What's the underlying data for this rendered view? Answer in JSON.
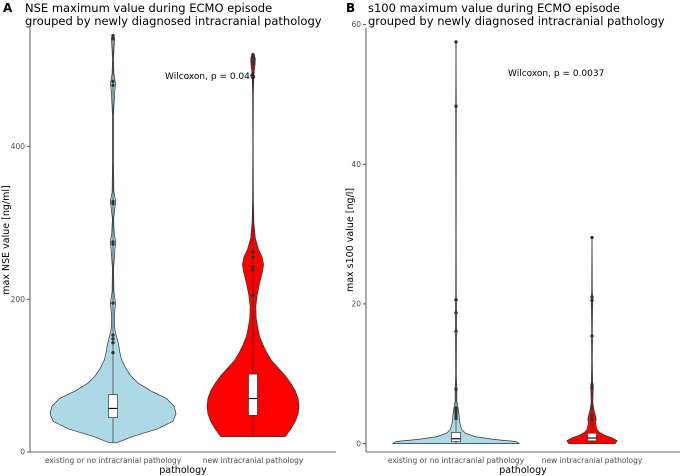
{
  "chart_data": [
    {
      "panel": "A",
      "type": "violin",
      "title_line1": "NSE maximum value during ECMO episode",
      "title_line2": "grouped by newly diagnosed intracranial pathology",
      "xlabel": "pathology",
      "ylabel": "max NSE value [ng/ml]",
      "ylim": [
        0,
        555
      ],
      "yticks": [
        "0",
        "200",
        "400"
      ],
      "annotation": "Wilcoxon, p = 0.046",
      "categories": [
        "existing or no intracranial pathology",
        "new intracranial pathology"
      ],
      "series": [
        {
          "fill": "#add8e6",
          "min": 12,
          "q1": 45,
          "median": 57,
          "q3": 75,
          "max": 545,
          "whisker_high": 130,
          "outliers": [
            545,
            541,
            485,
            480,
            328,
            325,
            275,
            272,
            195,
            153,
            148,
            143,
            130
          ],
          "density": [
            [
              12,
              0.06
            ],
            [
              20,
              0.3
            ],
            [
              30,
              0.7
            ],
            [
              40,
              0.95
            ],
            [
              50,
              1
            ],
            [
              60,
              0.97
            ],
            [
              70,
              0.85
            ],
            [
              80,
              0.6
            ],
            [
              90,
              0.4
            ],
            [
              100,
              0.28
            ],
            [
              110,
              0.2
            ],
            [
              120,
              0.14
            ],
            [
              130,
              0.11
            ],
            [
              140,
              0.09
            ],
            [
              150,
              0.06
            ],
            [
              160,
              0.03
            ],
            [
              175,
              0.02
            ],
            [
              195,
              0.04
            ],
            [
              210,
              0.015
            ],
            [
              240,
              0.01
            ],
            [
              265,
              0.03
            ],
            [
              275,
              0.045
            ],
            [
              285,
              0.02
            ],
            [
              305,
              0.01
            ],
            [
              320,
              0.03
            ],
            [
              328,
              0.045
            ],
            [
              340,
              0.015
            ],
            [
              380,
              0.008
            ],
            [
              440,
              0.008
            ],
            [
              470,
              0.025
            ],
            [
              482,
              0.04
            ],
            [
              495,
              0.015
            ],
            [
              515,
              0.008
            ],
            [
              535,
              0.02
            ],
            [
              542,
              0.025
            ],
            [
              546,
              0
            ]
          ]
        },
        {
          "fill": "#ff0000",
          "min": 20,
          "q1": 48,
          "median": 70,
          "q3": 102,
          "max": 520,
          "whisker_high": 145,
          "outliers": [
            520,
            516,
            512,
            508,
            262,
            255,
            242,
            238,
            205
          ],
          "density": [
            [
              20,
              0.7
            ],
            [
              30,
              0.82
            ],
            [
              40,
              0.92
            ],
            [
              50,
              0.98
            ],
            [
              60,
              1
            ],
            [
              70,
              0.98
            ],
            [
              80,
              0.92
            ],
            [
              90,
              0.82
            ],
            [
              100,
              0.7
            ],
            [
              110,
              0.55
            ],
            [
              120,
              0.4
            ],
            [
              130,
              0.3
            ],
            [
              140,
              0.22
            ],
            [
              150,
              0.15
            ],
            [
              160,
              0.11
            ],
            [
              175,
              0.07
            ],
            [
              190,
              0.06
            ],
            [
              205,
              0.09
            ],
            [
              220,
              0.14
            ],
            [
              235,
              0.2
            ],
            [
              245,
              0.23
            ],
            [
              255,
              0.2
            ],
            [
              265,
              0.12
            ],
            [
              280,
              0.05
            ],
            [
              300,
              0.02
            ],
            [
              330,
              0.008
            ],
            [
              400,
              0.005
            ],
            [
              470,
              0.008
            ],
            [
              495,
              0.02
            ],
            [
              508,
              0.045
            ],
            [
              515,
              0.05
            ],
            [
              520,
              0.025
            ],
            [
              522,
              0
            ]
          ]
        }
      ]
    },
    {
      "panel": "B",
      "type": "violin",
      "title_line1": "s100 maximum value during ECMO episode",
      "title_line2": "grouped by newly diagnosed intracranial pathology",
      "xlabel": "pathology",
      "ylabel": "max s100 value [ng/l]",
      "ylim": [
        -1.2,
        59.5
      ],
      "yticks": [
        "0",
        "20",
        "40",
        "60"
      ],
      "annotation": "Wilcoxon, p = 0.0037",
      "categories": [
        "existing or no intracranial pathology",
        "new intracranial pathology"
      ],
      "series": [
        {
          "fill": "#add8e6",
          "min": 0,
          "q1": 0.3,
          "median": 0.7,
          "q3": 1.6,
          "max": 57.5,
          "whisker_high": 3.6,
          "outliers": [
            57.5,
            48.3,
            20.6,
            18.7,
            16.1,
            7.8,
            5.1,
            4.8,
            4.5,
            4.2,
            3.9,
            3.6
          ],
          "density": [
            [
              0,
              1
            ],
            [
              0.3,
              0.95
            ],
            [
              0.6,
              0.6
            ],
            [
              1,
              0.3
            ],
            [
              1.5,
              0.15
            ],
            [
              2,
              0.09
            ],
            [
              3,
              0.06
            ],
            [
              4,
              0.05
            ],
            [
              5,
              0.035
            ],
            [
              6,
              0.015
            ],
            [
              8,
              0.012
            ],
            [
              10,
              0.005
            ],
            [
              16,
              0.008
            ],
            [
              18,
              0.008
            ],
            [
              20,
              0.008
            ],
            [
              21,
              0.004
            ],
            [
              30,
              0.003
            ],
            [
              48,
              0.004
            ],
            [
              57.5,
              0
            ]
          ]
        },
        {
          "fill": "#ff0000",
          "min": 0,
          "q1": 0.4,
          "median": 0.8,
          "q3": 1.5,
          "max": 29.5,
          "whisker_high": 3.2,
          "outliers": [
            29.5,
            21.0,
            20.5,
            15.4,
            8.4,
            8.0,
            5.0,
            4.0,
            3.5
          ],
          "density": [
            [
              0,
              0.55
            ],
            [
              0.4,
              0.6
            ],
            [
              0.8,
              0.48
            ],
            [
              1.2,
              0.3
            ],
            [
              1.6,
              0.18
            ],
            [
              2,
              0.12
            ],
            [
              3,
              0.08
            ],
            [
              3.5,
              0.1
            ],
            [
              4,
              0.08
            ],
            [
              5,
              0.04
            ],
            [
              6,
              0.02
            ],
            [
              8,
              0.03
            ],
            [
              9,
              0.015
            ],
            [
              12,
              0.008
            ],
            [
              15,
              0.012
            ],
            [
              16,
              0.008
            ],
            [
              20,
              0.014
            ],
            [
              21,
              0.014
            ],
            [
              22,
              0.006
            ],
            [
              26,
              0.004
            ],
            [
              29.5,
              0
            ]
          ]
        }
      ]
    }
  ]
}
